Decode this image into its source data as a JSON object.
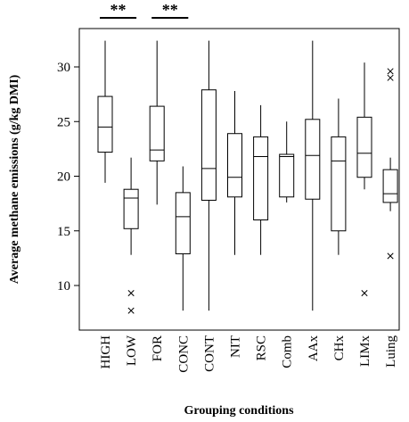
{
  "chart_data": {
    "type": "box",
    "xlabel": "Grouping conditions",
    "ylabel": "Average methane emissions (g/kg DMI)",
    "ylim": [
      7,
      33.5
    ],
    "yticks": [
      10,
      15,
      20,
      25,
      30
    ],
    "categories": [
      "HIGH",
      "LOW",
      "FOR",
      "CONC",
      "CONT",
      "NIT",
      "RSC",
      "Comb",
      "AAx",
      "CHx",
      "LIMx",
      "Luing"
    ],
    "boxes": [
      {
        "category": "HIGH",
        "whisker_low": 19.4,
        "q1": 22.2,
        "median": 24.5,
        "q3": 27.3,
        "whisker_high": 32.4,
        "outliers": []
      },
      {
        "category": "LOW",
        "whisker_low": 12.8,
        "q1": 15.2,
        "median": 18.0,
        "q3": 18.8,
        "whisker_high": 21.7,
        "outliers": [
          9.3,
          7.7
        ]
      },
      {
        "category": "FOR",
        "whisker_low": 17.4,
        "q1": 21.4,
        "median": 22.4,
        "q3": 26.4,
        "whisker_high": 32.4,
        "outliers": []
      },
      {
        "category": "CONC",
        "whisker_low": 7.7,
        "q1": 12.9,
        "median": 16.3,
        "q3": 18.5,
        "whisker_high": 20.9,
        "outliers": []
      },
      {
        "category": "CONT",
        "whisker_low": 7.7,
        "q1": 17.8,
        "median": 20.7,
        "q3": 27.9,
        "whisker_high": 32.4,
        "outliers": []
      },
      {
        "category": "NIT",
        "whisker_low": 12.8,
        "q1": 18.1,
        "median": 19.9,
        "q3": 23.9,
        "whisker_high": 27.8,
        "outliers": []
      },
      {
        "category": "RSC",
        "whisker_low": 12.8,
        "q1": 16.0,
        "median": 21.8,
        "q3": 23.6,
        "whisker_high": 26.5,
        "outliers": []
      },
      {
        "category": "Comb",
        "whisker_low": 17.6,
        "q1": 18.1,
        "median": 21.8,
        "q3": 22.0,
        "whisker_high": 25.0,
        "outliers": []
      },
      {
        "category": "AAx",
        "whisker_low": 7.7,
        "q1": 17.9,
        "median": 21.9,
        "q3": 25.2,
        "whisker_high": 32.4,
        "outliers": []
      },
      {
        "category": "CHx",
        "whisker_low": 12.8,
        "q1": 15.0,
        "median": 21.4,
        "q3": 23.6,
        "whisker_high": 27.1,
        "outliers": []
      },
      {
        "category": "LIMx",
        "whisker_low": 18.8,
        "q1": 19.9,
        "median": 22.1,
        "q3": 25.4,
        "whisker_high": 30.4,
        "outliers": [
          9.3
        ]
      },
      {
        "category": "Luing",
        "whisker_low": 16.8,
        "q1": 17.6,
        "median": 18.4,
        "q3": 20.6,
        "whisker_high": 21.7,
        "outliers": [
          29.6,
          29.0,
          12.7
        ]
      }
    ],
    "annotations": [
      {
        "text": "**",
        "from": "HIGH",
        "to": "LOW"
      },
      {
        "text": "**",
        "from": "FOR",
        "to": "CONC"
      }
    ]
  }
}
